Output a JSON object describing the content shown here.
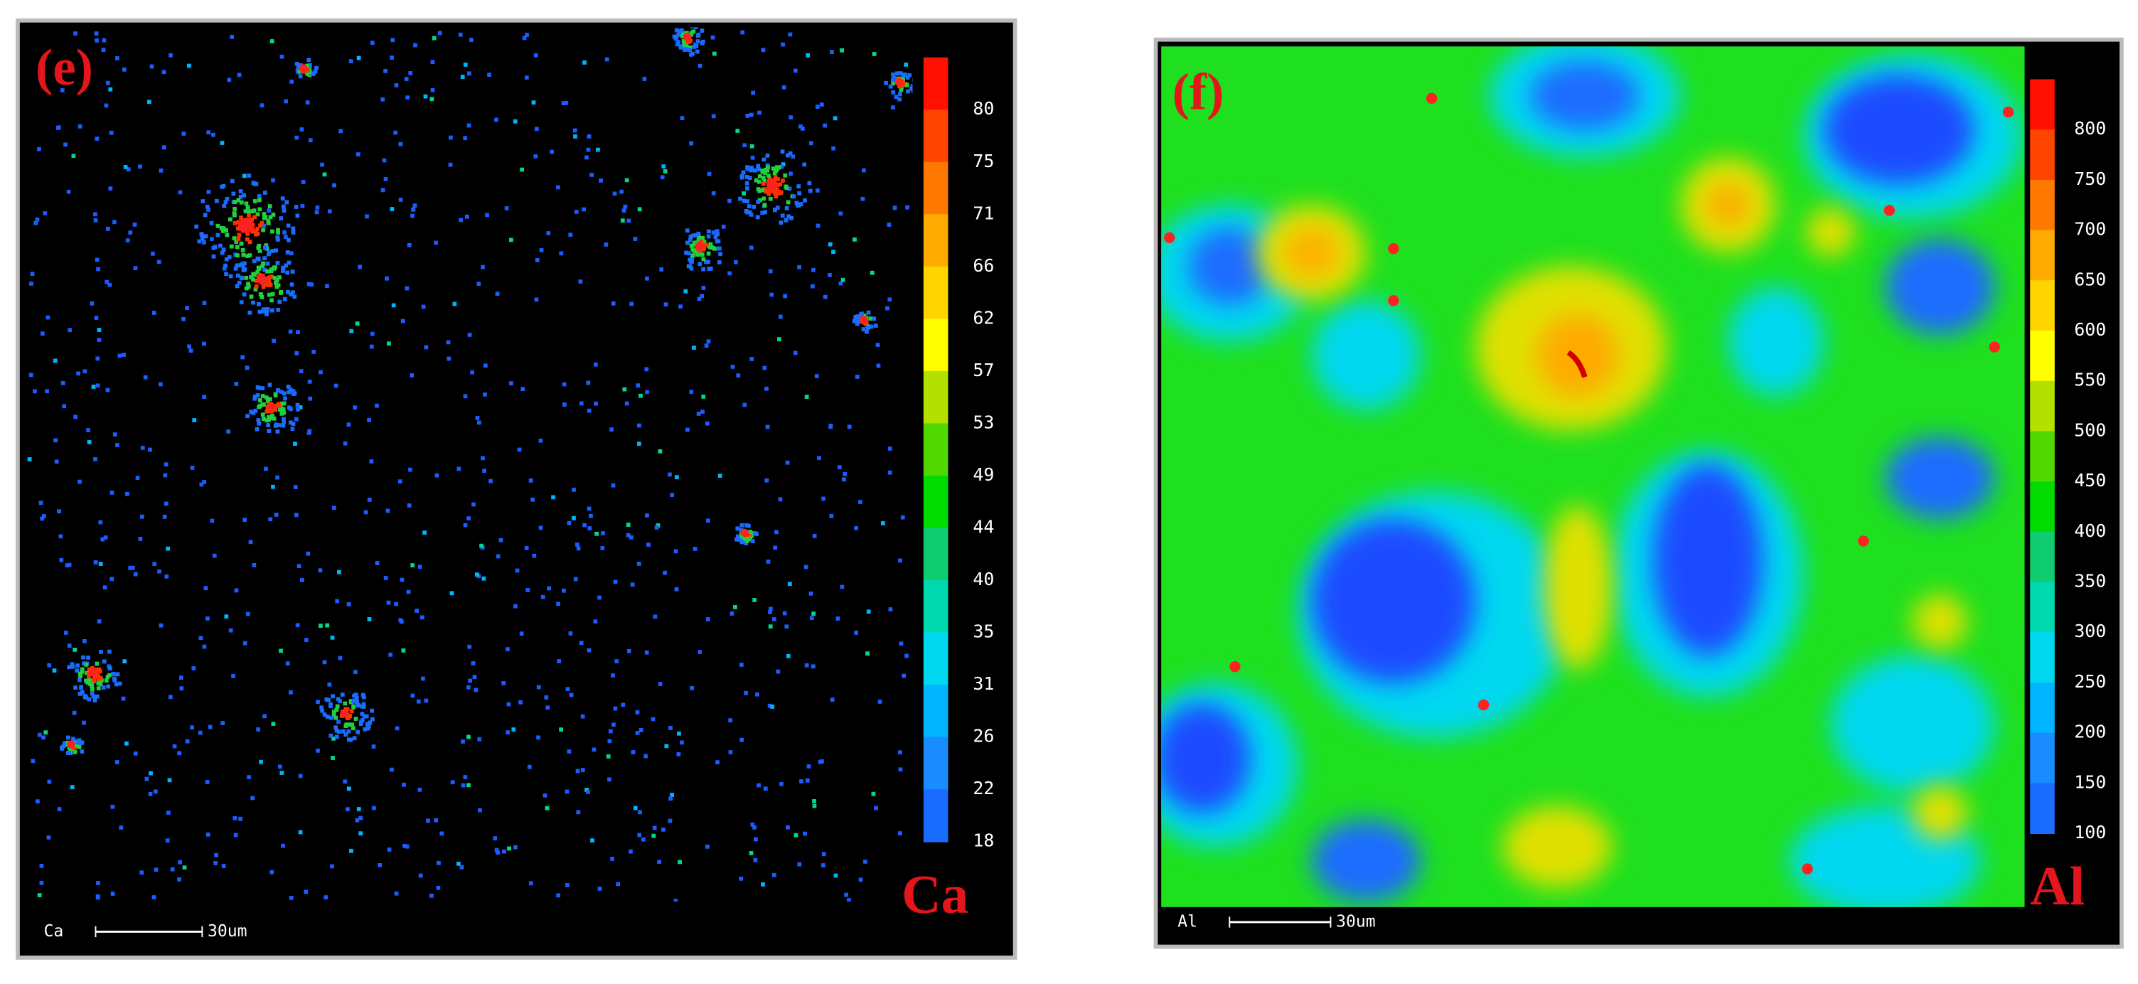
{
  "panels": [
    {
      "label": "(e)",
      "element": "Ca",
      "map_element": "Ca",
      "scale_bar": "30um",
      "colorbar_ticks": [
        80,
        75,
        71,
        66,
        62,
        57,
        53,
        49,
        44,
        40,
        35,
        31,
        26,
        22,
        18
      ]
    },
    {
      "label": "(f)",
      "element": "Al",
      "map_element": "Al",
      "scale_bar": "30um",
      "colorbar_ticks": [
        800,
        750,
        700,
        650,
        600,
        550,
        500,
        450,
        400,
        350,
        300,
        250,
        200,
        150,
        100
      ]
    }
  ]
}
